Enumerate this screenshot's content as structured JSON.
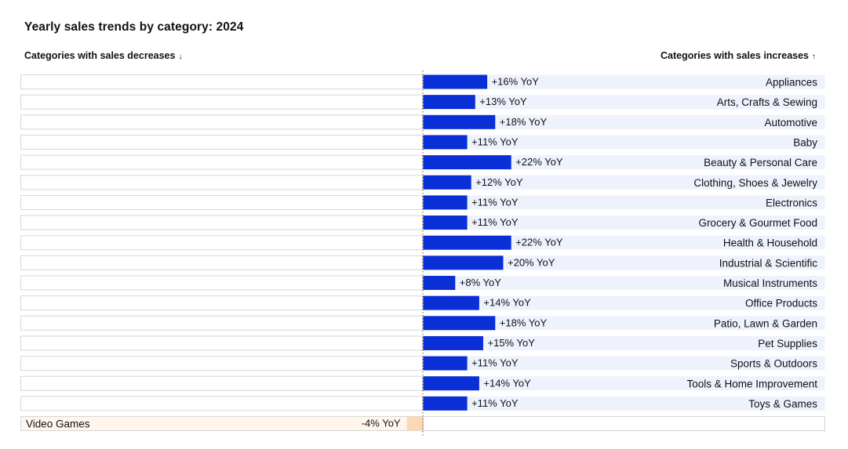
{
  "title": "Yearly sales trends by category: 2024",
  "headers": {
    "decreases": "Categories with sales decreases",
    "decreases_arrow": "↓",
    "increases": "Categories with sales increases",
    "increases_arrow": "↑"
  },
  "colors": {
    "increase_bar": "#0a2fd6",
    "increase_track": "#eef2fd",
    "decrease_bar": "#fcd9b4",
    "decrease_track": "#fff5ec",
    "neutral_track": "#f7f7f7",
    "border": "#d6d6d6",
    "zero_line": "#555555"
  },
  "chart_data": {
    "type": "bar",
    "orientation": "horizontal-diverging",
    "unit": "% YoY",
    "xlim": [
      -28,
      28
    ],
    "categories": [
      "Appliances",
      "Arts, Crafts & Sewing",
      "Automotive",
      "Baby",
      "Beauty & Personal Care",
      "Clothing, Shoes & Jewelry",
      "Electronics",
      "Grocery & Gourmet Food",
      "Health & Household",
      "Industrial & Scientific",
      "Musical Instruments",
      "Office Products",
      "Patio, Lawn & Garden",
      "Pet Supplies",
      "Sports & Outdoors",
      "Tools & Home Improvement",
      "Toys & Games",
      "Video Games"
    ],
    "values": [
      16,
      13,
      18,
      11,
      22,
      12,
      11,
      11,
      22,
      20,
      8,
      14,
      18,
      15,
      11,
      14,
      11,
      -4
    ],
    "labels": [
      "+16% YoY",
      "+13% YoY",
      "+18% YoY",
      "+11% YoY",
      "+22% YoY",
      "+12% YoY",
      "+11% YoY",
      "+11% YoY",
      "+22% YoY",
      "+20% YoY",
      "+8% YoY",
      "+14% YoY",
      "+18% YoY",
      "+15% YoY",
      "+11% YoY",
      "+14% YoY",
      "+11% YoY",
      "-4% YoY"
    ]
  }
}
